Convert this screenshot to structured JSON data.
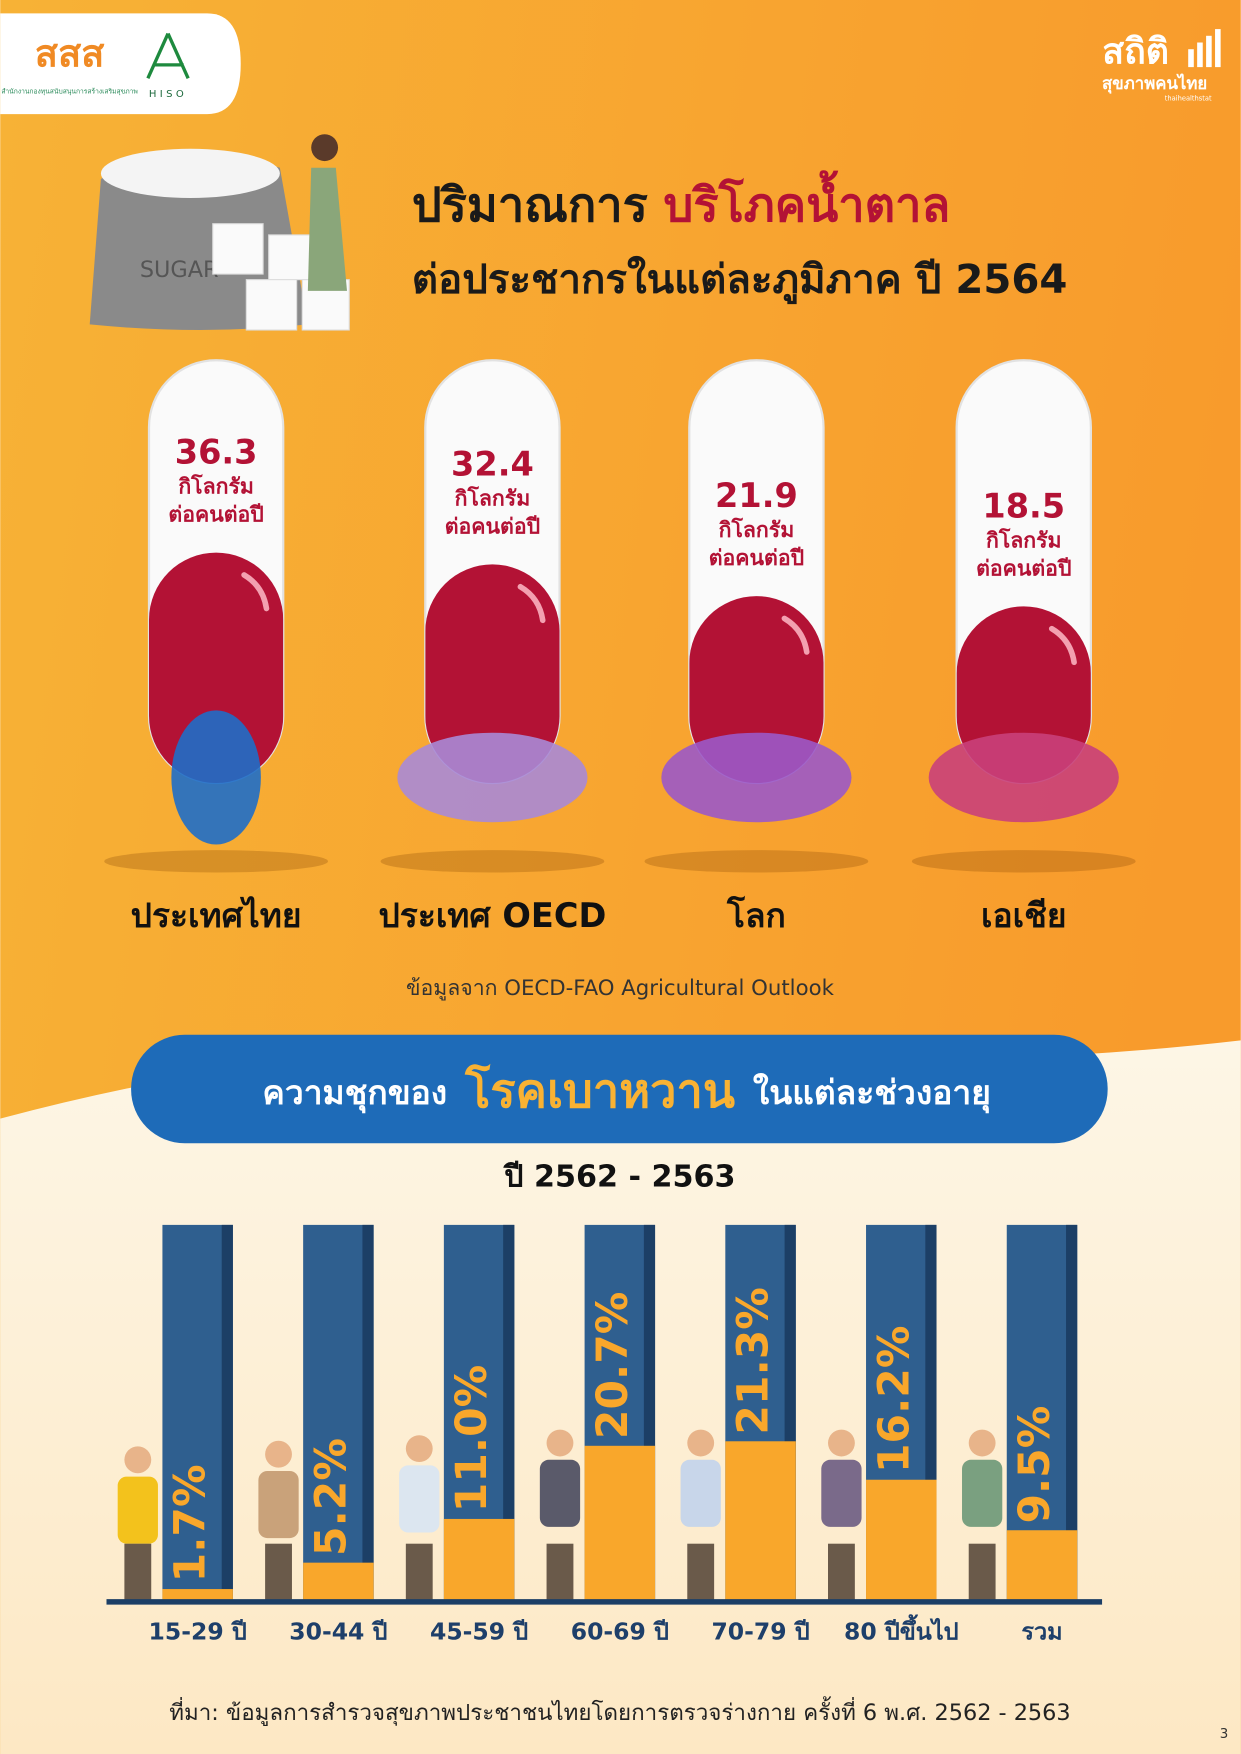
{
  "header": {
    "logo_left": "สสส",
    "logo_left_caption": "สำนักงานกองทุนสนับสนุนการสร้างเสริมสุขภาพ",
    "logo_hiso": "HISO",
    "logo_right": "สถิติ",
    "logo_right_sub": "สุขภาพคนไทย",
    "logo_right_url": "thaihealthstat",
    "title_part1": "ปริมาณการ",
    "title_highlight": "บริโภคน้ำตาล",
    "title_line2": "ต่อประชากรในแต่ละภูมิภาค ปี 2564"
  },
  "chart_data": [
    {
      "type": "pill",
      "categories": [
        "ประเทศไทย",
        "ประเทศ OECD",
        "โลก",
        "เอเชีย"
      ],
      "values": [
        36.3,
        32.4,
        21.9,
        18.5
      ],
      "unit_lines": [
        "กิโลกรัม",
        "ต่อคนต่อปี"
      ],
      "color": "#b31235",
      "ylim": [
        -40,
        100
      ],
      "source": "ข้อมูลจาก OECD-FAO Agricultural Outlook"
    },
    {
      "type": "bar",
      "title_part1": "ความชุกของ",
      "title_highlight": "โรคเบาหวาน",
      "title_part2": "ในแต่ละช่วงอายุ",
      "subtitle": "ปี 2562 - 2563",
      "categories": [
        "15-29 ปี",
        "30-44 ปี",
        "45-59 ปี",
        "60-69 ปี",
        "70-79 ปี",
        "80 ปีขึ้นไป",
        "รวม"
      ],
      "values": [
        1.7,
        5.2,
        11.0,
        20.7,
        21.3,
        16.2,
        9.5
      ],
      "value_labels": [
        "1.7%",
        "5.2%",
        "11.0%",
        "20.7%",
        "21.3%",
        "16.2%",
        "9.5%"
      ],
      "color": "#f9a72b",
      "ylim": [
        0,
        50
      ]
    }
  ],
  "footer": {
    "source": "ที่มา: ข้อมูลการสำรวจสุขภาพประชาชนไทยโดยการตรวจร่างกาย ครั้งที่ 6 พ.ศ. 2562 - 2563",
    "page_number": 3
  }
}
